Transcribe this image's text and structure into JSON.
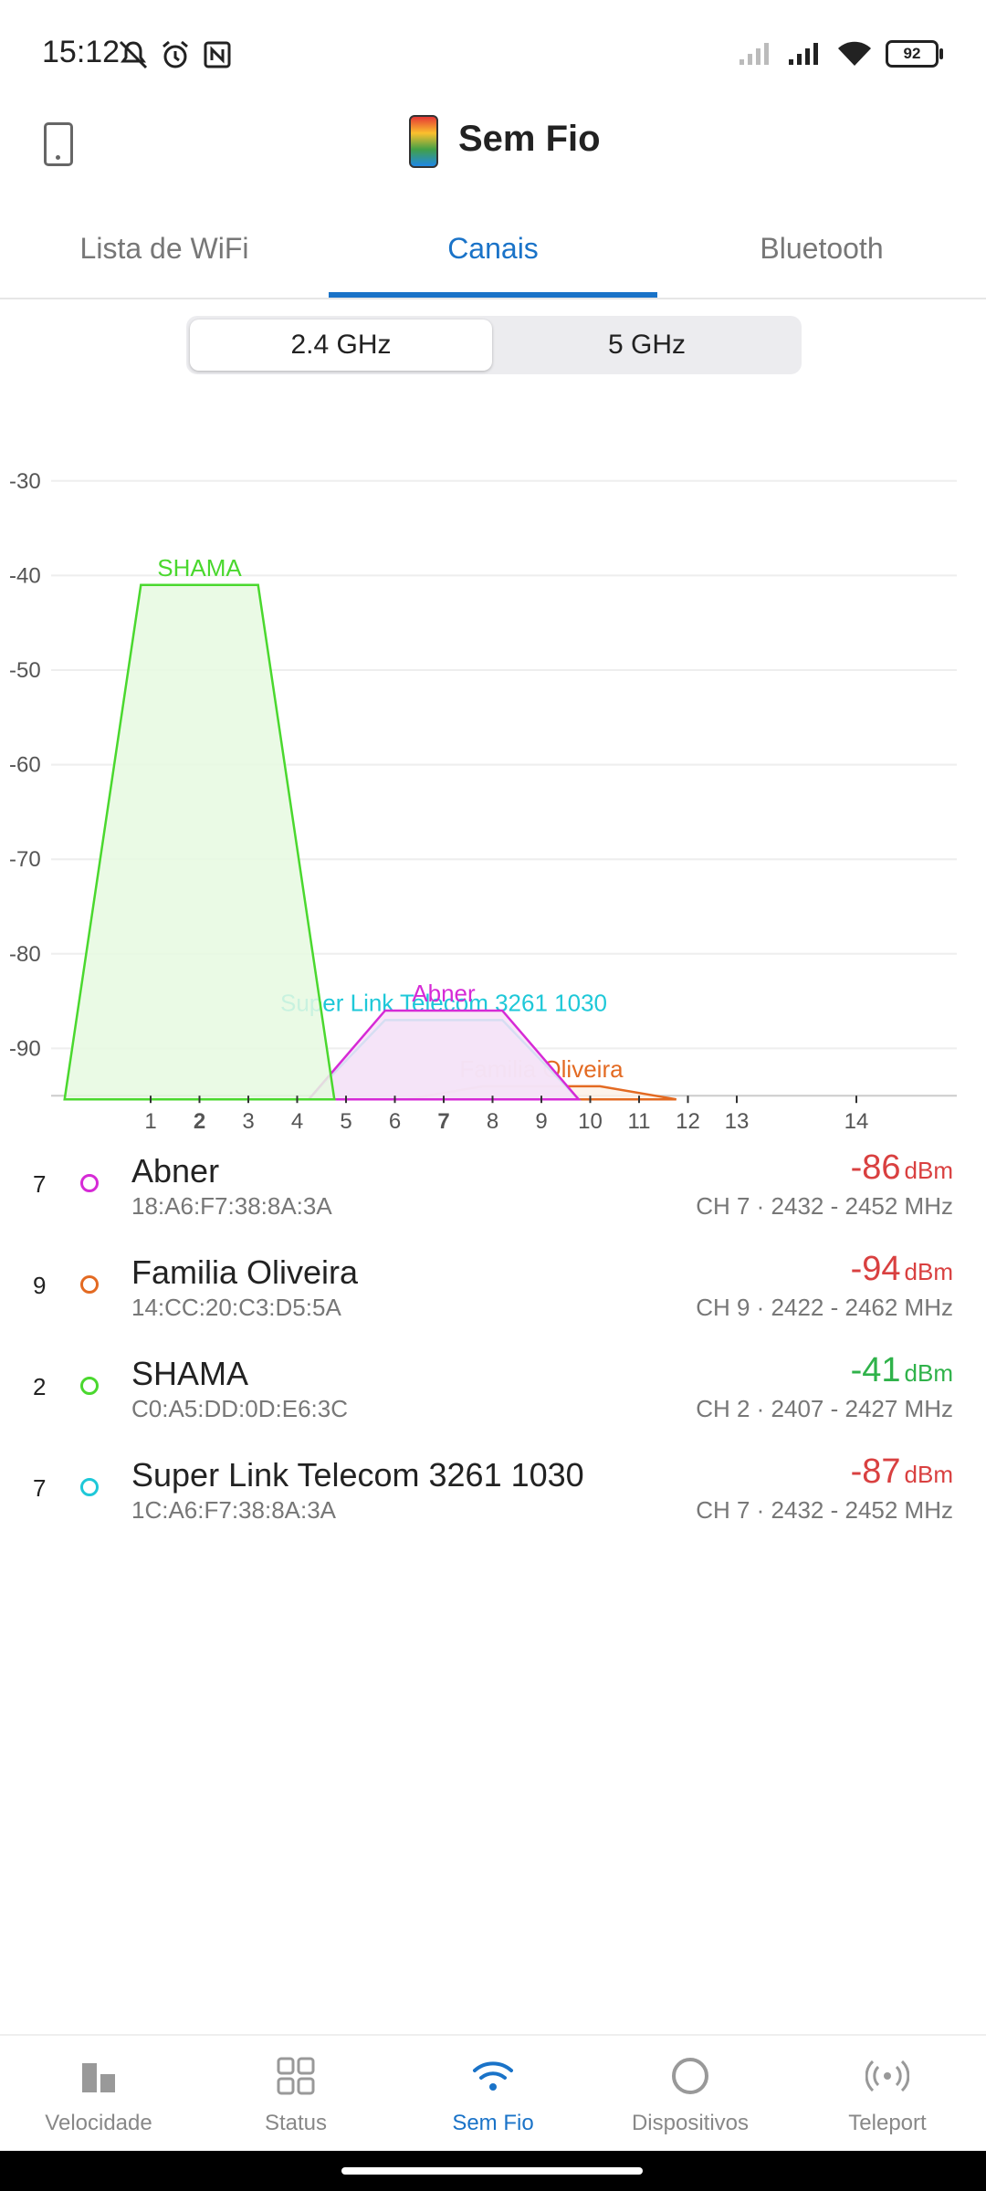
{
  "status_bar": {
    "time": "15:12",
    "battery": "92",
    "icons_left": [
      "mute-icon",
      "alarm-icon",
      "nfc-icon"
    ],
    "icons_right": [
      "signal-icon",
      "signal-icon",
      "wifi-icon",
      "battery-icon"
    ]
  },
  "header": {
    "title": "Sem Fio"
  },
  "tabs": [
    {
      "label": "Lista de WiFi",
      "active": false
    },
    {
      "label": "Canais",
      "active": true
    },
    {
      "label": "Bluetooth",
      "active": false
    }
  ],
  "band_selector": {
    "options": [
      "2.4 GHz",
      "5 GHz"
    ],
    "selected": "2.4 GHz"
  },
  "chart_data": {
    "type": "area",
    "xlabel": "",
    "ylabel": "",
    "y_ticks": [
      -30,
      -40,
      -50,
      -60,
      -70,
      -80,
      -90
    ],
    "ylim": [
      -95,
      -25
    ],
    "x_ticks": [
      1,
      2,
      3,
      4,
      5,
      6,
      7,
      8,
      9,
      10,
      11,
      12,
      13,
      14
    ],
    "x_bold_ticks": [
      2,
      7
    ],
    "grid": true,
    "series": [
      {
        "name": "SHAMA",
        "channel": 2,
        "signal": -41,
        "color": "#4ad82e",
        "fill": "#e6f9e0"
      },
      {
        "name": "Abner",
        "channel": 7,
        "signal": -86,
        "color": "#d62ad6",
        "fill": "#f7e2f7"
      },
      {
        "name": "Super Link Telecom 3261 1030",
        "channel": 7,
        "signal": -87,
        "color": "#1ec8d8",
        "fill": "#e4f0fb"
      },
      {
        "name": "Familia Oliveira",
        "channel": 9,
        "signal": -94,
        "color": "#e36a22",
        "fill": "#fdf1e6"
      }
    ]
  },
  "networks": [
    {
      "channel": "7",
      "name": "Abner",
      "mac": "18:A6:F7:38:8A:3A",
      "signal": "-86",
      "unit": "dBm",
      "signal_color": "#d94040",
      "ch_info": "CH 7 · 2432 - 2452 MHz",
      "dot_color": "#d62ad6"
    },
    {
      "channel": "9",
      "name": "Familia Oliveira",
      "mac": "14:CC:20:C3:D5:5A",
      "signal": "-94",
      "unit": "dBm",
      "signal_color": "#d94040",
      "ch_info": "CH 9 · 2422 - 2462 MHz",
      "dot_color": "#e36a22"
    },
    {
      "channel": "2",
      "name": "SHAMA",
      "mac": "C0:A5:DD:0D:E6:3C",
      "signal": "-41",
      "unit": "dBm",
      "signal_color": "#2fb24a",
      "ch_info": "CH 2 · 2407 - 2427 MHz",
      "dot_color": "#4ad82e"
    },
    {
      "channel": "7",
      "name": "Super Link Telecom 3261 1030",
      "mac": "1C:A6:F7:38:8A:3A",
      "signal": "-87",
      "unit": "dBm",
      "signal_color": "#d94040",
      "ch_info": "CH 7 · 2432 - 2452 MHz",
      "dot_color": "#1ec8d8"
    }
  ],
  "bottom_nav": [
    {
      "label": "Velocidade",
      "icon": "speed-icon",
      "active": false
    },
    {
      "label": "Status",
      "icon": "grid-icon",
      "active": false
    },
    {
      "label": "Sem Fio",
      "icon": "wifi-icon",
      "active": true
    },
    {
      "label": "Dispositivos",
      "icon": "devices-icon",
      "active": false
    },
    {
      "label": "Teleport",
      "icon": "teleport-icon",
      "active": false
    }
  ]
}
